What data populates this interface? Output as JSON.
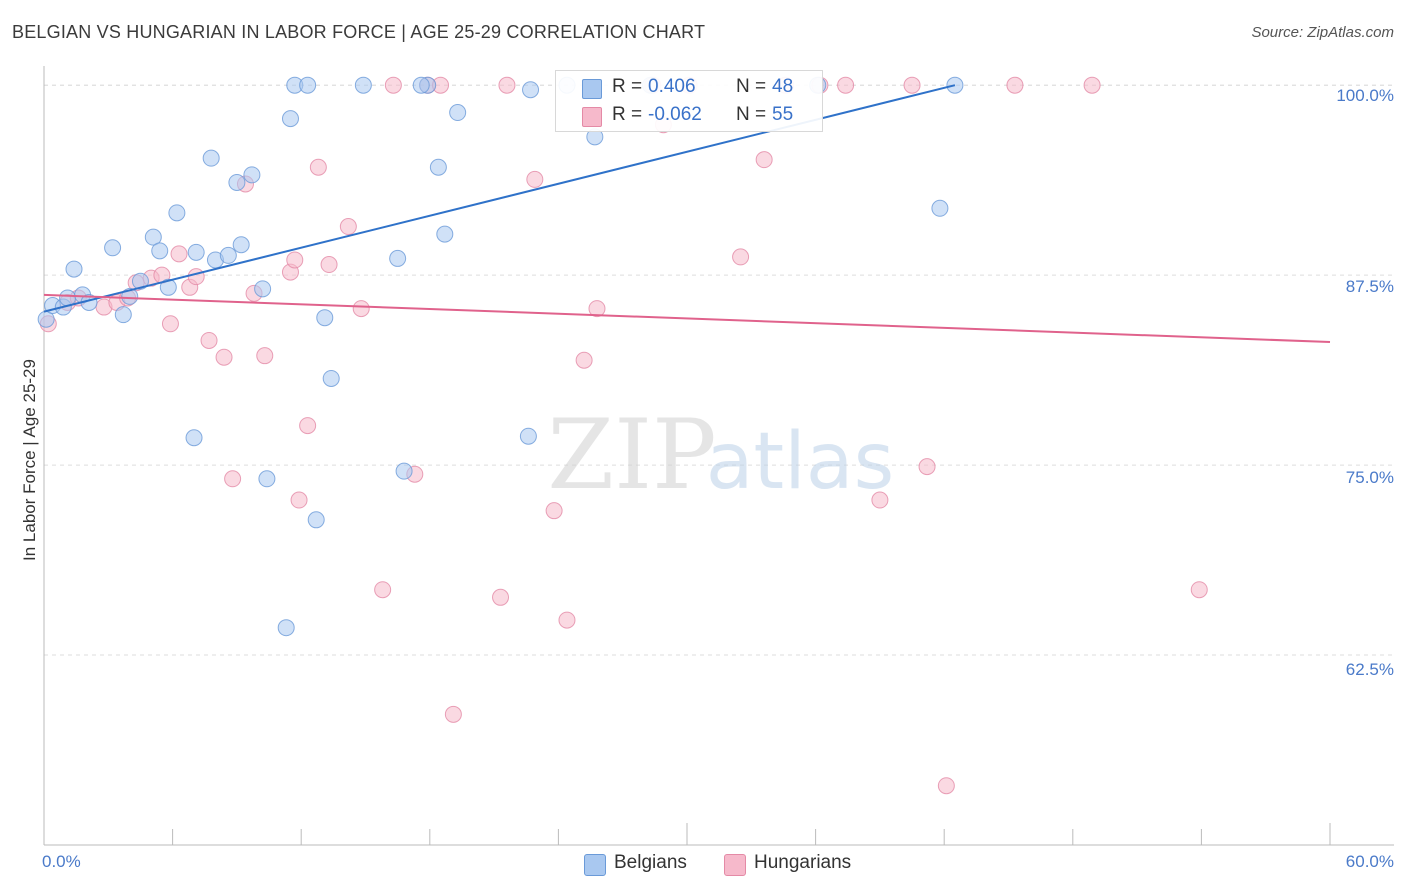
{
  "title": "BELGIAN VS HUNGARIAN IN LABOR FORCE | AGE 25-29 CORRELATION CHART",
  "source": "Source: ZipAtlas.com",
  "watermark": {
    "zip": "ZIP",
    "atlas": "atlas"
  },
  "colors": {
    "belgian_fill": "#a9c8f0",
    "belgian_stroke": "#6a9ad8",
    "belgian_line": "#2f72c9",
    "hungarian_fill": "#f6b9cb",
    "hungarian_stroke": "#e48aa6",
    "hungarian_line": "#e0628c",
    "tick_text": "#4a7ac9",
    "grid": "#dddddd"
  },
  "legend_top": {
    "rows": [
      {
        "r_label": "R =",
        "r_value": "0.406",
        "n_label": "N =",
        "n_value": "48"
      },
      {
        "r_label": "R =",
        "r_value": "-0.062",
        "n_label": "N =",
        "n_value": "55"
      }
    ]
  },
  "legend_bottom": {
    "belgians": "Belgians",
    "hungarians": "Hungarians"
  },
  "chart_data": {
    "type": "scatter",
    "title": "BELGIAN VS HUNGARIAN IN LABOR FORCE | AGE 25-29 CORRELATION CHART",
    "xlabel": "",
    "ylabel": "In Labor Force | Age 25-29",
    "xlim": [
      0,
      60
    ],
    "ylim": [
      50,
      101
    ],
    "x_tick_labels": [
      "0.0%",
      "60.0%"
    ],
    "y_ticks": [
      62.5,
      75.0,
      87.5,
      100.0
    ],
    "y_tick_labels": [
      "62.5%",
      "75.0%",
      "87.5%",
      "100.0%"
    ],
    "grid": true,
    "legend_position": "top-center",
    "series": [
      {
        "name": "Belgians",
        "r": 0.406,
        "n": 48,
        "trend": {
          "x": [
            0.0,
            42.5
          ],
          "y": [
            85.1,
            100.0
          ]
        },
        "points": [
          [
            0.1,
            84.6
          ],
          [
            0.4,
            85.5
          ],
          [
            0.9,
            85.4
          ],
          [
            1.1,
            86.0
          ],
          [
            1.8,
            86.2
          ],
          [
            1.4,
            87.9
          ],
          [
            2.1,
            85.7
          ],
          [
            3.2,
            89.3
          ],
          [
            3.7,
            84.9
          ],
          [
            4.0,
            86.1
          ],
          [
            4.5,
            87.1
          ],
          [
            5.1,
            90.0
          ],
          [
            5.4,
            89.1
          ],
          [
            5.8,
            86.7
          ],
          [
            6.2,
            91.6
          ],
          [
            7.1,
            89.0
          ],
          [
            7.8,
            95.2
          ],
          [
            7.0,
            76.8
          ],
          [
            8.0,
            88.5
          ],
          [
            8.6,
            88.8
          ],
          [
            9.0,
            93.6
          ],
          [
            9.2,
            89.5
          ],
          [
            9.7,
            94.1
          ],
          [
            10.2,
            86.6
          ],
          [
            10.4,
            74.1
          ],
          [
            11.3,
            64.3
          ],
          [
            11.5,
            97.8
          ],
          [
            11.7,
            100.0
          ],
          [
            12.3,
            100.0
          ],
          [
            12.7,
            71.4
          ],
          [
            13.1,
            84.7
          ],
          [
            13.4,
            80.7
          ],
          [
            14.9,
            100.0
          ],
          [
            16.5,
            88.6
          ],
          [
            16.8,
            74.6
          ],
          [
            17.9,
            100.0
          ],
          [
            18.4,
            94.6
          ],
          [
            18.7,
            90.2
          ],
          [
            19.3,
            98.2
          ],
          [
            22.6,
            76.9
          ],
          [
            22.7,
            99.7
          ],
          [
            24.4,
            100.0
          ],
          [
            25.7,
            96.6
          ],
          [
            28.3,
            100.0
          ],
          [
            36.1,
            100.0
          ],
          [
            41.8,
            91.9
          ],
          [
            42.5,
            100.0
          ],
          [
            17.6,
            100.0
          ]
        ]
      },
      {
        "name": "Hungarians",
        "r": -0.062,
        "n": 55,
        "trend": {
          "x": [
            0.0,
            60.0
          ],
          "y": [
            86.2,
            83.1
          ]
        },
        "points": [
          [
            0.2,
            84.3
          ],
          [
            1.1,
            85.7
          ],
          [
            1.6,
            86.0
          ],
          [
            2.8,
            85.4
          ],
          [
            3.4,
            85.7
          ],
          [
            3.9,
            86.0
          ],
          [
            4.3,
            87.0
          ],
          [
            5.0,
            87.3
          ],
          [
            5.5,
            87.5
          ],
          [
            5.9,
            84.3
          ],
          [
            6.3,
            88.9
          ],
          [
            6.8,
            86.7
          ],
          [
            7.1,
            87.4
          ],
          [
            7.7,
            83.2
          ],
          [
            8.4,
            82.1
          ],
          [
            8.8,
            74.1
          ],
          [
            9.4,
            93.5
          ],
          [
            9.8,
            86.3
          ],
          [
            10.3,
            82.2
          ],
          [
            11.5,
            87.7
          ],
          [
            11.7,
            88.5
          ],
          [
            11.9,
            72.7
          ],
          [
            12.3,
            77.6
          ],
          [
            12.8,
            94.6
          ],
          [
            13.3,
            88.2
          ],
          [
            14.2,
            90.7
          ],
          [
            14.8,
            85.3
          ],
          [
            15.8,
            66.8
          ],
          [
            16.3,
            100.0
          ],
          [
            17.3,
            74.4
          ],
          [
            17.9,
            100.0
          ],
          [
            18.5,
            100.0
          ],
          [
            19.1,
            58.6
          ],
          [
            21.3,
            66.3
          ],
          [
            21.6,
            100.0
          ],
          [
            22.9,
            93.8
          ],
          [
            23.8,
            72.0
          ],
          [
            24.4,
            64.8
          ],
          [
            25.2,
            81.9
          ],
          [
            25.8,
            85.3
          ],
          [
            28.4,
            100.0
          ],
          [
            28.9,
            97.4
          ],
          [
            30.1,
            100.0
          ],
          [
            32.5,
            88.7
          ],
          [
            33.6,
            95.1
          ],
          [
            34.6,
            100.0
          ],
          [
            36.2,
            100.0
          ],
          [
            37.4,
            100.0
          ],
          [
            39.0,
            72.7
          ],
          [
            40.5,
            100.0
          ],
          [
            41.2,
            74.9
          ],
          [
            42.1,
            53.9
          ],
          [
            45.3,
            100.0
          ],
          [
            48.9,
            100.0
          ],
          [
            53.9,
            66.8
          ]
        ]
      }
    ]
  }
}
